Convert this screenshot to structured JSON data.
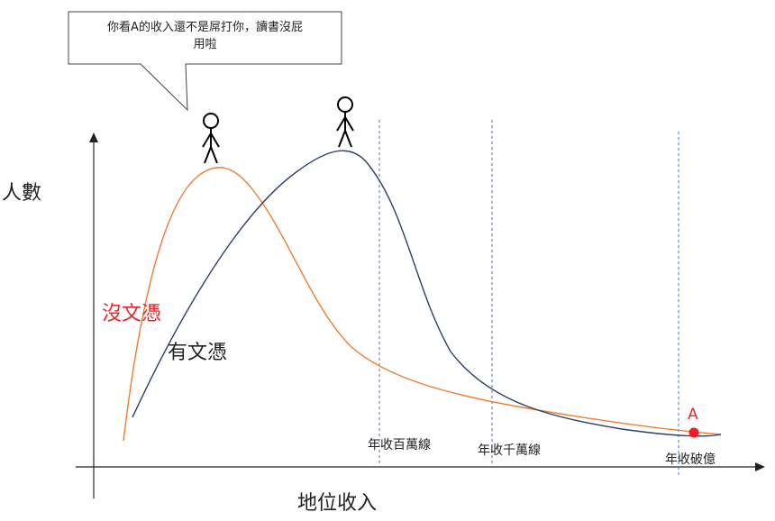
{
  "speech_bubble": {
    "line1": "你看A的收入還不是屌打你，讀書沒屁",
    "line2": "用啦"
  },
  "axes": {
    "y_label": "人數",
    "x_label": "地位收入"
  },
  "series": {
    "no_education": {
      "label": "沒文憑",
      "color": "#ed7d31"
    },
    "educated": {
      "label": "有文憑",
      "color": "#2f3f66"
    }
  },
  "reference_lines": [
    {
      "label": "年收百萬線"
    },
    {
      "label": "年收千萬線"
    },
    {
      "label": "年收破億"
    }
  ],
  "point_a": {
    "label": "A",
    "color": "#ee1c24"
  },
  "colors": {
    "guide": "#4472c4",
    "axis": "#222222"
  }
}
